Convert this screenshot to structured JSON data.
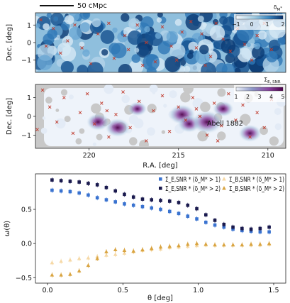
{
  "scale_bar": {
    "label": "50 cMpc"
  },
  "chart_data": [
    {
      "type": "heatmap",
      "panel": "top",
      "ylabel": "Dec. [deg]",
      "xlim": [
        223,
        209
      ],
      "ylim": [
        -1.7,
        1.7
      ],
      "yticks": [
        "1",
        "0",
        "−1"
      ],
      "colorbar": {
        "label": "δ_M*",
        "ticks": [
          "−1",
          "0",
          "1",
          "2"
        ],
        "range": [
          -1,
          2
        ]
      },
      "crosses": [
        [
          222.7,
          1.3
        ],
        [
          222.0,
          0.8
        ],
        [
          221.6,
          -0.6
        ],
        [
          221.2,
          0.1
        ],
        [
          220.4,
          -0.3
        ],
        [
          219.5,
          0.5
        ],
        [
          218.9,
          1.1
        ],
        [
          218.6,
          -0.9
        ],
        [
          218.0,
          0.4
        ],
        [
          217.8,
          -0.4
        ],
        [
          217.3,
          1.0
        ],
        [
          216.8,
          0.0
        ],
        [
          216.3,
          -1.1
        ],
        [
          215.9,
          0.9
        ],
        [
          215.4,
          -0.2
        ],
        [
          214.8,
          0.6
        ],
        [
          214.3,
          1.2
        ],
        [
          214.0,
          -0.3
        ],
        [
          213.7,
          0.5
        ],
        [
          213.2,
          -0.8
        ],
        [
          212.9,
          1.1
        ],
        [
          212.5,
          0.2
        ],
        [
          212.1,
          -0.5
        ],
        [
          211.7,
          0.8
        ],
        [
          211.3,
          -0.1
        ],
        [
          210.9,
          -1.0
        ],
        [
          210.6,
          0.4
        ],
        [
          210.2,
          1.1
        ],
        [
          209.8,
          -0.4
        ],
        [
          222.4,
          -0.2
        ],
        [
          220.8,
          1.0
        ],
        [
          219.9,
          -1.2
        ],
        [
          217.0,
          -1.3
        ],
        [
          215.1,
          -1.0
        ],
        [
          213.5,
          -1.3
        ]
      ]
    },
    {
      "type": "heatmap",
      "panel": "middle",
      "xlabel": "R.A. [deg]",
      "ylabel": "Dec. [deg]",
      "xlim": [
        223,
        209
      ],
      "ylim": [
        -1.7,
        1.7
      ],
      "xticks": [
        "220",
        "215",
        "210"
      ],
      "yticks": [
        "1",
        "0",
        "−1"
      ],
      "annotation": "Abell 1882",
      "colorbar": {
        "label": "Σ_E,SNR",
        "ticks": [
          "1",
          "2",
          "3",
          "4",
          "5"
        ],
        "range": [
          1,
          5
        ]
      },
      "crosses": [
        [
          222.6,
          1.4
        ],
        [
          222.2,
          0.5
        ],
        [
          221.8,
          -0.3
        ],
        [
          221.4,
          1.0
        ],
        [
          220.9,
          -0.9
        ],
        [
          220.5,
          0.2
        ],
        [
          220.1,
          1.2
        ],
        [
          219.7,
          -0.4
        ],
        [
          219.3,
          0.7
        ],
        [
          218.9,
          -1.1
        ],
        [
          218.5,
          0.1
        ],
        [
          218.1,
          1.3
        ],
        [
          217.7,
          -0.6
        ],
        [
          217.2,
          0.8
        ],
        [
          216.8,
          -1.3
        ],
        [
          216.4,
          0.3
        ],
        [
          215.9,
          1.1
        ],
        [
          215.5,
          -0.8
        ],
        [
          215.0,
          0.5
        ],
        [
          214.6,
          -0.2
        ],
        [
          214.2,
          1.0
        ],
        [
          213.8,
          0.0
        ],
        [
          213.4,
          -1.0
        ],
        [
          213.0,
          0.7
        ],
        [
          212.6,
          -0.5
        ],
        [
          212.2,
          1.2
        ],
        [
          211.8,
          -0.2
        ],
        [
          211.4,
          0.6
        ],
        [
          211.0,
          -1.1
        ],
        [
          210.6,
          0.2
        ],
        [
          210.2,
          -0.6
        ],
        [
          209.8,
          0.9
        ],
        [
          222.9,
          -0.7
        ],
        [
          219.0,
          0.3
        ],
        [
          214.0,
          0.4
        ],
        [
          212.8,
          -1.3
        ]
      ],
      "blobs": [
        [
          219.5,
          -0.3,
          0.6
        ],
        [
          218.4,
          -0.6,
          0.7
        ],
        [
          214.8,
          0.1,
          0.8
        ],
        [
          214.4,
          -0.4,
          0.6
        ],
        [
          213.4,
          -0.3,
          1.0
        ],
        [
          212.5,
          0.4,
          0.5
        ],
        [
          211.0,
          -0.9,
          0.6
        ],
        [
          217.3,
          0.4,
          0.4
        ]
      ]
    },
    {
      "type": "scatter",
      "panel": "bottom",
      "xlabel": "θ [deg]",
      "ylabel": "ω(θ)",
      "xlim": [
        -0.08,
        1.58
      ],
      "ylim": [
        -0.58,
        1.02
      ],
      "xticks": [
        0.0,
        0.5,
        1.0,
        1.5
      ],
      "yticks": [
        -0.5,
        0.0,
        0.5
      ],
      "legend": "top-right",
      "x": [
        0.03,
        0.09,
        0.15,
        0.21,
        0.27,
        0.33,
        0.39,
        0.45,
        0.51,
        0.57,
        0.63,
        0.69,
        0.75,
        0.81,
        0.87,
        0.93,
        0.99,
        1.05,
        1.11,
        1.17,
        1.23,
        1.29,
        1.35,
        1.41,
        1.47
      ],
      "series": [
        {
          "name": "Σ_E,SNR * (δ_M* > 1)",
          "marker": "square",
          "color": "#3a73d0",
          "values": [
            0.78,
            0.77,
            0.76,
            0.74,
            0.71,
            0.67,
            0.64,
            0.61,
            0.58,
            0.56,
            0.54,
            0.52,
            0.5,
            0.47,
            0.44,
            0.4,
            0.36,
            0.31,
            0.27,
            0.24,
            0.21,
            0.19,
            0.18,
            0.17,
            0.17
          ]
        },
        {
          "name": "Σ_E,SNR * (δ_M* > 2)",
          "marker": "square",
          "color": "#1a1a4e",
          "values": [
            0.93,
            0.92,
            0.91,
            0.9,
            0.88,
            0.86,
            0.82,
            0.77,
            0.72,
            0.68,
            0.65,
            0.64,
            0.63,
            0.62,
            0.6,
            0.56,
            0.51,
            0.42,
            0.34,
            0.28,
            0.24,
            0.22,
            0.21,
            0.22,
            0.24
          ]
        },
        {
          "name": "Σ_B,SNR * (δ_M* > 1)",
          "marker": "triangle",
          "color": "#f6d9a6",
          "values": [
            -0.28,
            -0.26,
            -0.24,
            -0.22,
            -0.21,
            -0.19,
            -0.17,
            -0.16,
            -0.14,
            -0.12,
            -0.1,
            -0.09,
            -0.08,
            -0.06,
            -0.05,
            -0.04,
            -0.03,
            -0.02,
            -0.02,
            -0.02,
            -0.02,
            -0.02,
            -0.02,
            -0.02,
            -0.01
          ]
        },
        {
          "name": "Σ_B,SNR * (δ_M* > 2)",
          "marker": "triangle",
          "color": "#d9a441",
          "values": [
            -0.46,
            -0.46,
            -0.45,
            -0.4,
            -0.32,
            -0.22,
            -0.12,
            -0.09,
            -0.1,
            -0.11,
            -0.09,
            -0.07,
            -0.05,
            -0.04,
            -0.03,
            -0.01,
            0.0,
            -0.01,
            -0.02,
            -0.02,
            -0.02,
            -0.02,
            -0.01,
            -0.01,
            0.0
          ]
        }
      ]
    }
  ]
}
